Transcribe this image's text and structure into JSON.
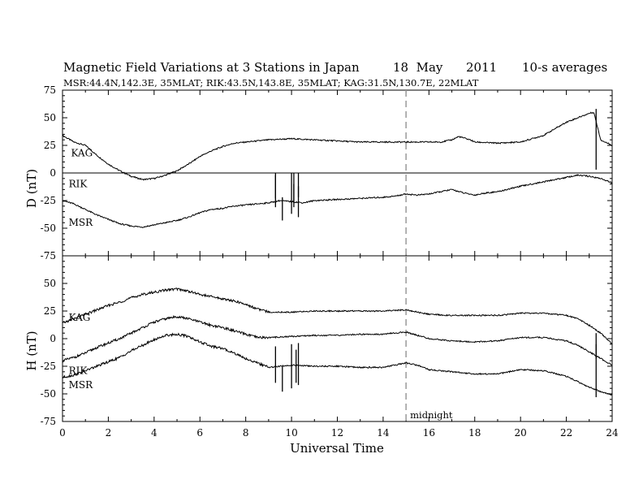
{
  "title": {
    "main": "Magnetic Field Variations at 3 Stations in Japan",
    "date": "18  May      2011",
    "avg": "10-s averages",
    "stations": "MSR:44.4N,142.3E, 35MLAT;  RIK:43.5N,143.8E, 35MLAT;  KAG:31.5N,130.7E, 22MLAT"
  },
  "chart_data": [
    {
      "type": "line",
      "panel": "D",
      "ylabel": "D (nT)",
      "xlabel": "",
      "xlim": [
        0,
        24
      ],
      "ylim": [
        -75,
        75
      ],
      "yticks": [
        75,
        50,
        25,
        0,
        -25,
        -50,
        -75
      ],
      "xticks": [
        0,
        2,
        4,
        6,
        8,
        10,
        12,
        14,
        16,
        18,
        20,
        22,
        24
      ],
      "reference_line": 0,
      "series": [
        {
          "name": "KAG",
          "label_at": [
            0.3,
            18
          ],
          "x": [
            0,
            0.5,
            1,
            1.5,
            2,
            2.5,
            3,
            3.5,
            4,
            4.5,
            5,
            5.5,
            6,
            6.5,
            7,
            7.5,
            8,
            9,
            10,
            11,
            12,
            13,
            14,
            15,
            16,
            16.5,
            17,
            17.3,
            17.8,
            18,
            19,
            20,
            20.5,
            21,
            21.5,
            22,
            22.5,
            23,
            23.2,
            23.5,
            24
          ],
          "y": [
            34,
            28,
            25,
            16,
            8,
            2,
            -3,
            -6,
            -5,
            -2,
            2,
            8,
            15,
            20,
            24,
            27,
            28,
            30,
            31,
            30,
            29,
            28,
            28,
            28,
            28,
            28,
            30,
            33,
            30,
            28,
            27,
            28,
            31,
            34,
            40,
            46,
            50,
            54,
            55,
            30,
            25
          ],
          "spikes": [
            {
              "x": 23.3,
              "lo": 3,
              "hi": 58
            }
          ]
        },
        {
          "name": "RIK",
          "label_at": [
            0.2,
            -10
          ],
          "x": [
            0,
            24
          ],
          "y": [
            0,
            0
          ],
          "spikes": [
            {
              "x": 9.3,
              "lo": -23,
              "hi": 0
            },
            {
              "x": 10.1,
              "lo": -26,
              "hi": 0
            },
            {
              "x": 10.3,
              "lo": -22,
              "hi": 0
            }
          ]
        },
        {
          "name": "MSR",
          "label_at": [
            0.2,
            -45
          ],
          "x": [
            0,
            0.5,
            1,
            1.5,
            2,
            2.5,
            3,
            3.5,
            4,
            4.5,
            5,
            5.5,
            6,
            6.5,
            7,
            7.5,
            8,
            8.5,
            9,
            9.5,
            10,
            10.5,
            11,
            12,
            13,
            14,
            14.5,
            15,
            15.5,
            16,
            16.5,
            17,
            17.5,
            18,
            18.5,
            19,
            20,
            21,
            22,
            22.5,
            23,
            23.5,
            24
          ],
          "y": [
            -25,
            -28,
            -33,
            -38,
            -42,
            -46,
            -48,
            -49,
            -47,
            -45,
            -43,
            -40,
            -36,
            -33,
            -32,
            -30,
            -29,
            -28,
            -27,
            -25,
            -26,
            -27,
            -25,
            -24,
            -23,
            -22,
            -21,
            -19,
            -20,
            -19,
            -17,
            -15,
            -18,
            -20,
            -18,
            -17,
            -12,
            -8,
            -4,
            -2,
            -3,
            -5,
            -9
          ],
          "spikes": [
            {
              "x": 9.3,
              "lo": -31,
              "hi": -2
            },
            {
              "x": 9.6,
              "lo": -43,
              "hi": -22
            },
            {
              "x": 10.0,
              "lo": -37,
              "hi": 0
            },
            {
              "x": 10.1,
              "lo": -31,
              "hi": -10
            },
            {
              "x": 10.3,
              "lo": -40,
              "hi": -12
            }
          ]
        }
      ]
    },
    {
      "type": "line",
      "panel": "H",
      "ylabel": "H (nT)",
      "xlabel": "Universal Time",
      "xlim": [
        0,
        24
      ],
      "ylim": [
        -75,
        75
      ],
      "yticks": [
        75,
        50,
        25,
        0,
        -25,
        -50,
        -75
      ],
      "xticks": [
        0,
        2,
        4,
        6,
        8,
        10,
        12,
        14,
        16,
        18,
        20,
        22,
        24
      ],
      "marker": {
        "x": 15,
        "label": "midnight"
      },
      "series": [
        {
          "name": "KAG",
          "label_at": [
            0.2,
            19
          ],
          "x": [
            0,
            0.5,
            1,
            1.5,
            2,
            2.5,
            3,
            3.5,
            4,
            4.5,
            5,
            5.5,
            6,
            6.5,
            7,
            7.5,
            8,
            8.5,
            9,
            10,
            11,
            12,
            13,
            14,
            15,
            15.5,
            16,
            17,
            18,
            19,
            20,
            21,
            22,
            22.5,
            23,
            23.5,
            24
          ],
          "y": [
            14,
            18,
            22,
            26,
            30,
            33,
            37,
            40,
            42,
            44,
            45,
            43,
            40,
            38,
            36,
            34,
            31,
            27,
            24,
            24,
            25,
            25,
            25,
            25,
            26,
            24,
            22,
            21,
            21,
            21,
            23,
            23,
            21,
            18,
            12,
            5,
            -5
          ]
        },
        {
          "name": "RIK",
          "label_at": [
            0.2,
            -29
          ],
          "x": [
            0,
            0.5,
            1,
            1.5,
            2,
            2.5,
            3,
            3.5,
            4,
            4.5,
            5,
            5.5,
            6,
            6.5,
            7,
            7.5,
            8,
            8.5,
            9,
            10,
            11,
            12,
            13,
            14,
            15,
            15.5,
            16,
            17,
            18,
            19,
            20,
            21,
            22,
            22.5,
            23,
            23.5,
            24
          ],
          "y": [
            -20,
            -17,
            -13,
            -8,
            -4,
            0,
            5,
            10,
            15,
            18,
            20,
            18,
            15,
            12,
            10,
            7,
            4,
            1,
            1,
            2,
            3,
            3,
            4,
            4,
            6,
            3,
            0,
            -2,
            -3,
            -2,
            1,
            1,
            -2,
            -6,
            -12,
            -18,
            -24
          ],
          "spikes": [
            {
              "x": 23.3,
              "lo": -18,
              "hi": 5
            }
          ]
        },
        {
          "name": "MSR",
          "label_at": [
            0.2,
            -42
          ],
          "x": [
            0,
            0.5,
            1,
            1.5,
            2,
            2.5,
            3,
            3.5,
            4,
            4.5,
            5,
            5.5,
            6,
            6.5,
            7,
            7.5,
            8,
            8.5,
            9,
            10,
            11,
            12,
            13,
            14,
            15,
            15.5,
            16,
            17,
            18,
            19,
            20,
            21,
            22,
            22.5,
            23,
            23.5,
            24
          ],
          "y": [
            -35,
            -33,
            -29,
            -25,
            -21,
            -17,
            -11,
            -6,
            -1,
            3,
            4,
            2,
            -3,
            -7,
            -9,
            -13,
            -18,
            -22,
            -26,
            -24,
            -25,
            -25,
            -26,
            -26,
            -22,
            -24,
            -28,
            -30,
            -32,
            -32,
            -28,
            -29,
            -34,
            -39,
            -44,
            -48,
            -51
          ],
          "spikes": [
            {
              "x": 9.3,
              "lo": -40,
              "hi": -7
            },
            {
              "x": 9.6,
              "lo": -48,
              "hi": -25
            },
            {
              "x": 10.0,
              "lo": -45,
              "hi": -5
            },
            {
              "x": 10.2,
              "lo": -40,
              "hi": -10
            },
            {
              "x": 10.3,
              "lo": -42,
              "hi": -4
            },
            {
              "x": 23.3,
              "lo": -53,
              "hi": -5
            }
          ]
        }
      ]
    }
  ]
}
